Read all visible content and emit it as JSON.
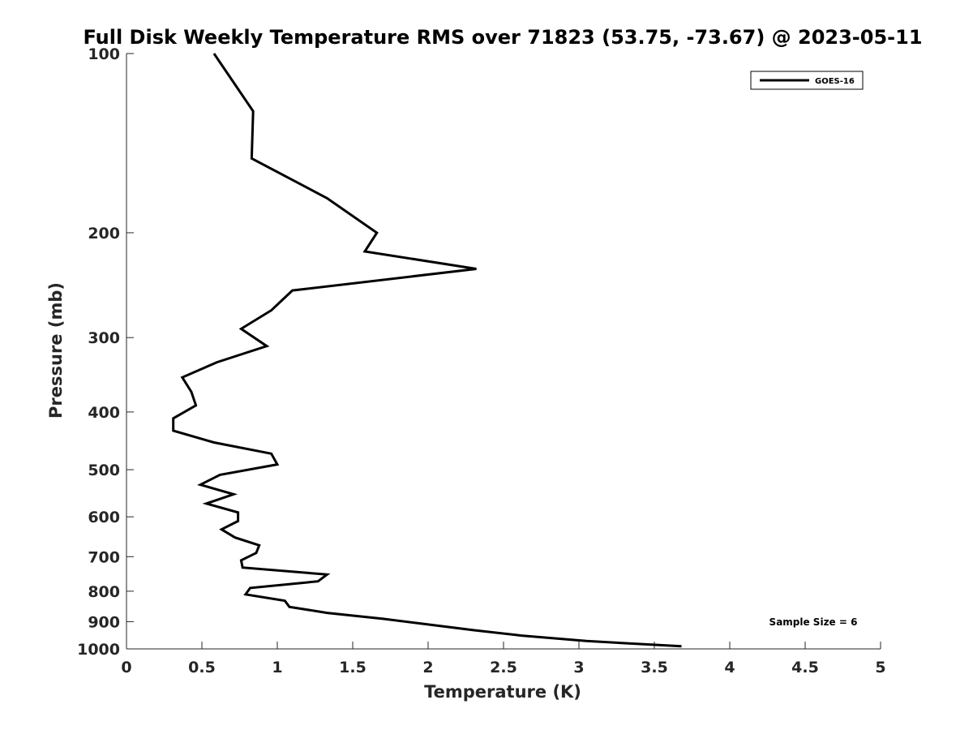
{
  "chart_data": {
    "type": "line",
    "title": "Full Disk Weekly Temperature RMS over 71823 (53.75, -73.67) @ 2023-05-11",
    "xlabel": "Temperature (K)",
    "ylabel": "Pressure (mb)",
    "xlim": [
      0,
      5
    ],
    "ylim": [
      100,
      1000
    ],
    "y_scale": "log",
    "y_reversed": true,
    "x_ticks": [
      0,
      0.5,
      1,
      1.5,
      2,
      2.5,
      3,
      3.5,
      4,
      4.5,
      5
    ],
    "x_tick_labels": [
      "0",
      "0.5",
      "1",
      "1.5",
      "2",
      "2.5",
      "3",
      "3.5",
      "4",
      "4.5",
      "5"
    ],
    "y_ticks": [
      100,
      200,
      300,
      400,
      500,
      600,
      700,
      800,
      900,
      1000
    ],
    "y_tick_labels": [
      "100",
      "200",
      "300",
      "400",
      "500",
      "600",
      "700",
      "800",
      "900",
      "1000"
    ],
    "grid": false,
    "legend_position": "top-right",
    "annotation": "Sample Size = 6",
    "series": [
      {
        "name": "GOES-16",
        "color": "#000000",
        "points": [
          [
            0.58,
            100
          ],
          [
            0.84,
            125
          ],
          [
            0.83,
            150
          ],
          [
            1.33,
            175
          ],
          [
            1.66,
            200
          ],
          [
            1.58,
            215
          ],
          [
            2.32,
            230
          ],
          [
            1.1,
            250
          ],
          [
            0.96,
            270
          ],
          [
            0.76,
            290
          ],
          [
            0.93,
            310
          ],
          [
            0.6,
            330
          ],
          [
            0.37,
            350
          ],
          [
            0.43,
            370
          ],
          [
            0.46,
            390
          ],
          [
            0.31,
            410
          ],
          [
            0.31,
            430
          ],
          [
            0.58,
            450
          ],
          [
            0.96,
            470
          ],
          [
            1.0,
            490
          ],
          [
            0.62,
            510
          ],
          [
            0.49,
            530
          ],
          [
            0.71,
            550
          ],
          [
            0.53,
            570
          ],
          [
            0.74,
            590
          ],
          [
            0.74,
            610
          ],
          [
            0.63,
            630
          ],
          [
            0.72,
            650
          ],
          [
            0.88,
            670
          ],
          [
            0.86,
            690
          ],
          [
            0.76,
            710
          ],
          [
            0.77,
            730
          ],
          [
            1.33,
            750
          ],
          [
            1.27,
            770
          ],
          [
            0.82,
            790
          ],
          [
            0.79,
            810
          ],
          [
            1.05,
            830
          ],
          [
            1.08,
            850
          ],
          [
            1.33,
            870
          ],
          [
            1.7,
            890
          ],
          [
            2.0,
            910
          ],
          [
            2.3,
            930
          ],
          [
            2.62,
            950
          ],
          [
            3.05,
            970
          ],
          [
            3.68,
            990
          ]
        ]
      }
    ]
  }
}
